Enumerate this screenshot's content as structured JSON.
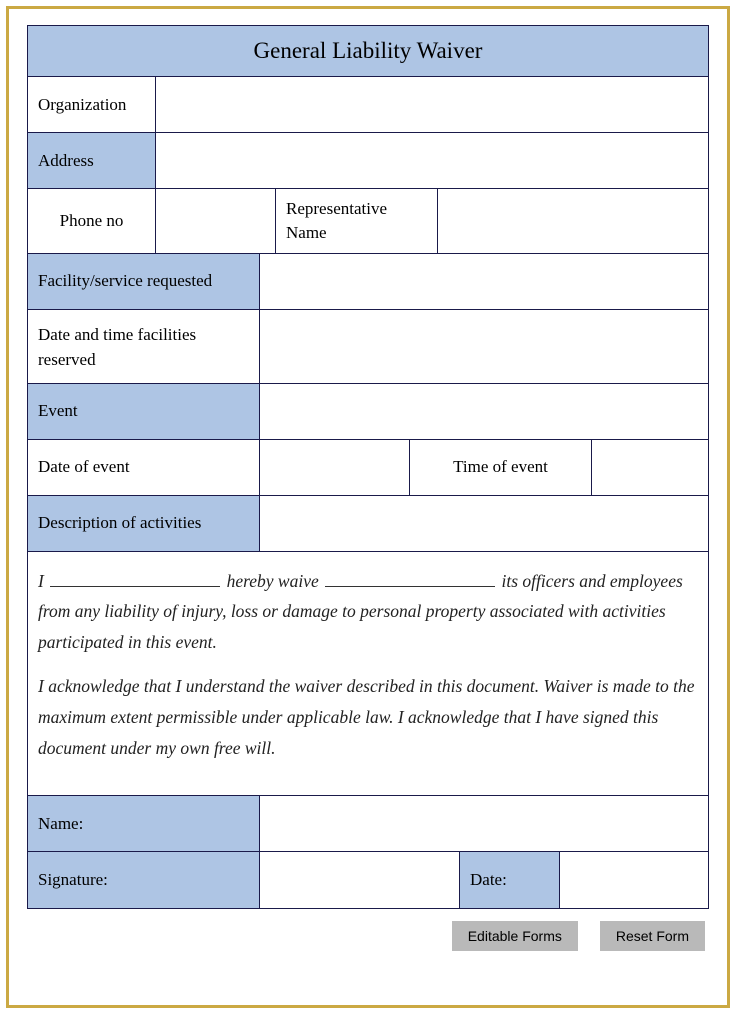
{
  "form": {
    "title": "General Liability Waiver",
    "rows": {
      "organization": {
        "label": "Organization",
        "value": ""
      },
      "address": {
        "label": "Address",
        "value": ""
      },
      "phone": {
        "label": "Phone no",
        "value": ""
      },
      "representative": {
        "label": "Representative Name",
        "value": ""
      },
      "facility": {
        "label": "Facility/service requested",
        "value": ""
      },
      "reserved": {
        "label": "Date and time facilities reserved",
        "value": ""
      },
      "event": {
        "label": "Event",
        "value": ""
      },
      "date_of_event": {
        "label": "Date of event",
        "value": ""
      },
      "time_of_event": {
        "label": "Time of event",
        "value": ""
      },
      "description": {
        "label": "Description of activities",
        "value": ""
      },
      "name": {
        "label": "Name:",
        "value": ""
      },
      "signature": {
        "label": "Signature:",
        "value": ""
      },
      "date": {
        "label": "Date:",
        "value": ""
      }
    },
    "waiver": {
      "p1_a": "I ",
      "p1_b": " hereby waive ",
      "p1_c": " its officers and employees from any liability of injury, loss or damage to personal property associated with activities participated in this event.",
      "p2": "I acknowledge that I understand the waiver described in this document. Waiver is made to the maximum extent permissible under applicable law. I acknowledge that I have signed this document under my own free will."
    }
  },
  "buttons": {
    "editable": "Editable Forms",
    "reset": "Reset Form"
  },
  "colors": {
    "outer_border": "#cba943",
    "cell_border": "#1a1a4a",
    "blue_fill": "#aec5e4",
    "button_bg": "#b9b9b9"
  }
}
